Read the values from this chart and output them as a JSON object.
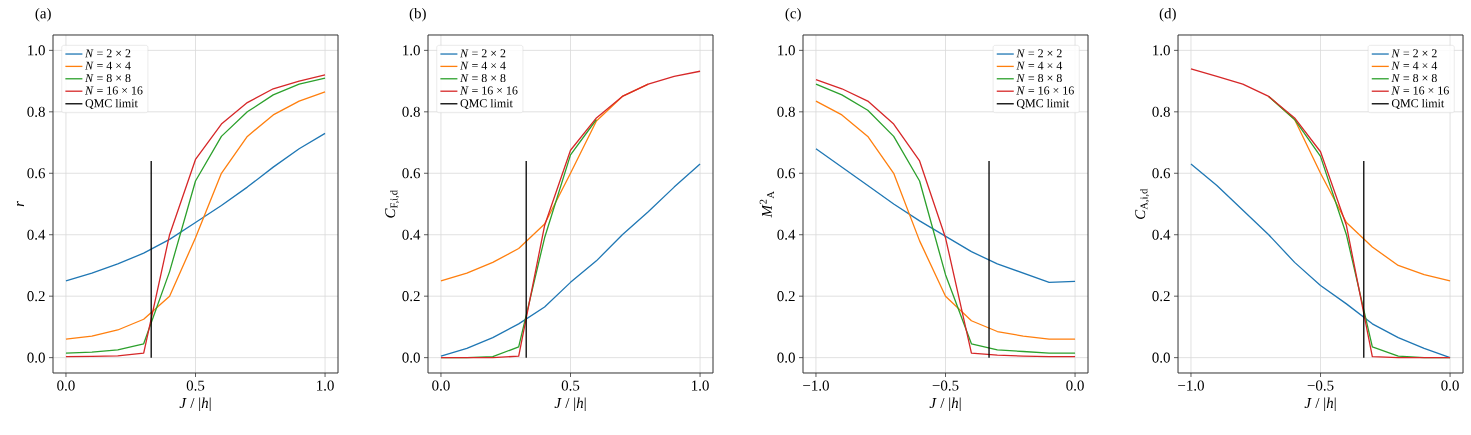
{
  "chart_data": [
    {
      "type": "line",
      "title": "(a)",
      "xlabel": "*J* / |*h*|",
      "ylabel": "*r*",
      "x": [
        0.0,
        0.1,
        0.2,
        0.3,
        0.4,
        0.5,
        0.6,
        0.7,
        0.8,
        0.9,
        1.0
      ],
      "series": [
        {
          "name": "*N* = 2 × 2",
          "color": "#1f77b4",
          "values": [
            0.25,
            0.275,
            0.305,
            0.34,
            0.385,
            0.44,
            0.495,
            0.555,
            0.62,
            0.68,
            0.73
          ]
        },
        {
          "name": "*N* = 4 × 4",
          "color": "#ff7f0e",
          "values": [
            0.06,
            0.07,
            0.09,
            0.125,
            0.2,
            0.39,
            0.6,
            0.72,
            0.79,
            0.835,
            0.865
          ]
        },
        {
          "name": "*N* = 8 × 8",
          "color": "#2ca02c",
          "values": [
            0.015,
            0.018,
            0.025,
            0.045,
            0.28,
            0.575,
            0.72,
            0.8,
            0.855,
            0.89,
            0.91
          ]
        },
        {
          "name": "*N* = 16 × 16",
          "color": "#d62728",
          "values": [
            0.003,
            0.004,
            0.006,
            0.015,
            0.4,
            0.645,
            0.76,
            0.83,
            0.875,
            0.9,
            0.92
          ]
        },
        {
          "name": "QMC limit",
          "color": "#000000",
          "x": [
            0.329,
            0.329
          ],
          "values": [
            0.0,
            0.64
          ]
        }
      ],
      "xlim": [
        -0.05,
        1.05
      ],
      "ylim": [
        -0.05,
        1.05
      ],
      "xticks": [
        {
          "value": 0,
          "label": "0.0"
        },
        {
          "value": 0.5,
          "label": "0.5"
        },
        {
          "value": 1,
          "label": "1.0"
        }
      ],
      "yticks": [
        {
          "value": 0,
          "label": "0.0"
        },
        {
          "value": 0.2,
          "label": "0.2"
        },
        {
          "value": 0.4,
          "label": "0.4"
        },
        {
          "value": 0.6,
          "label": "0.6"
        },
        {
          "value": 0.8,
          "label": "0.8"
        },
        {
          "value": 1,
          "label": "1.0"
        }
      ],
      "grid": true,
      "legend": "top left"
    },
    {
      "type": "line",
      "title": "(b)",
      "xlabel": "*J* / |*h*|",
      "ylabel": "*C*$_{F,i,d}$",
      "x": [
        0.0,
        0.1,
        0.2,
        0.3,
        0.4,
        0.5,
        0.6,
        0.7,
        0.8,
        0.9,
        1.0
      ],
      "series": [
        {
          "name": "*N* = 2 × 2",
          "color": "#1f77b4",
          "values": [
            0.005,
            0.03,
            0.065,
            0.11,
            0.165,
            0.245,
            0.315,
            0.4,
            0.475,
            0.555,
            0.63
          ]
        },
        {
          "name": "*N* = 4 × 4",
          "color": "#ff7f0e",
          "values": [
            0.25,
            0.275,
            0.31,
            0.355,
            0.435,
            0.6,
            0.77,
            0.85,
            0.89,
            null,
            null
          ]
        },
        {
          "name": "*N* = 8 × 8",
          "color": "#2ca02c",
          "values": [
            0.0,
            0.0,
            0.003,
            0.035,
            0.39,
            0.66,
            0.775,
            null,
            null,
            null,
            null
          ]
        },
        {
          "name": "*N* = 16 × 16",
          "color": "#d62728",
          "values": [
            0.0,
            0.0,
            0.0,
            0.005,
            0.43,
            0.675,
            0.78,
            0.85,
            0.89,
            0.915,
            0.932
          ]
        },
        {
          "name": "QMC limit",
          "color": "#000000",
          "x": [
            0.329,
            0.329
          ],
          "values": [
            0.0,
            0.64
          ]
        }
      ],
      "xlim": [
        -0.05,
        1.05
      ],
      "ylim": [
        -0.05,
        1.05
      ],
      "xticks": [
        {
          "value": 0,
          "label": "0.0"
        },
        {
          "value": 0.5,
          "label": "0.5"
        },
        {
          "value": 1,
          "label": "1.0"
        }
      ],
      "yticks": [
        {
          "value": 0,
          "label": "0.0"
        },
        {
          "value": 0.2,
          "label": "0.2"
        },
        {
          "value": 0.4,
          "label": "0.4"
        },
        {
          "value": 0.6,
          "label": "0.6"
        },
        {
          "value": 0.8,
          "label": "0.8"
        },
        {
          "value": 1,
          "label": "1.0"
        }
      ],
      "grid": true,
      "legend": "top left"
    },
    {
      "type": "line",
      "title": "(c)",
      "xlabel": "*J* / |*h*|",
      "ylabel": "*M*$^{2}$$_{A}$",
      "x": [
        -1.0,
        -0.9,
        -0.8,
        -0.7,
        -0.6,
        -0.5,
        -0.4,
        -0.3,
        -0.2,
        -0.1,
        0.0
      ],
      "series": [
        {
          "name": "*N* = 2 × 2",
          "color": "#1f77b4",
          "values": [
            0.68,
            0.62,
            0.56,
            0.5,
            0.445,
            0.395,
            0.345,
            0.305,
            0.275,
            0.245,
            0.248
          ]
        },
        {
          "name": "*N* = 4 × 4",
          "color": "#ff7f0e",
          "values": [
            0.835,
            0.79,
            0.72,
            0.6,
            0.38,
            0.2,
            0.12,
            0.085,
            0.07,
            0.06,
            0.06
          ]
        },
        {
          "name": "*N* = 8 × 8",
          "color": "#2ca02c",
          "values": [
            0.89,
            0.855,
            0.805,
            0.72,
            0.575,
            0.27,
            0.045,
            0.025,
            0.02,
            0.015,
            0.015
          ]
        },
        {
          "name": "*N* = 16 × 16",
          "color": "#d62728",
          "values": [
            0.905,
            0.875,
            0.835,
            0.76,
            0.64,
            0.39,
            0.015,
            0.008,
            0.005,
            0.003,
            0.003
          ]
        },
        {
          "name": "QMC limit",
          "color": "#000000",
          "x": [
            -0.332,
            -0.332
          ],
          "values": [
            0.0,
            0.64
          ]
        }
      ],
      "xlim": [
        -1.05,
        0.05
      ],
      "ylim": [
        -0.05,
        1.05
      ],
      "xticks": [
        {
          "value": -1,
          "label": "−1.0"
        },
        {
          "value": -0.5,
          "label": "−0.5"
        },
        {
          "value": 0,
          "label": "0.0"
        }
      ],
      "yticks": [
        {
          "value": 0,
          "label": "0.0"
        },
        {
          "value": 0.2,
          "label": "0.2"
        },
        {
          "value": 0.4,
          "label": "0.4"
        },
        {
          "value": 0.6,
          "label": "0.6"
        },
        {
          "value": 0.8,
          "label": "0.8"
        },
        {
          "value": 1,
          "label": "1.0"
        }
      ],
      "grid": true,
      "legend": "top right"
    },
    {
      "type": "line",
      "title": "(d)",
      "xlabel": "*J* / |*h*|",
      "ylabel": "*C*$_{A,i,d}$",
      "x": [
        -1.0,
        -0.9,
        -0.8,
        -0.7,
        -0.6,
        -0.5,
        -0.4,
        -0.3,
        -0.2,
        -0.1,
        0.0
      ],
      "series": [
        {
          "name": "*N* = 2 × 2",
          "color": "#1f77b4",
          "values": [
            0.63,
            0.56,
            0.48,
            0.4,
            0.31,
            0.235,
            0.175,
            0.11,
            0.065,
            0.03,
            0.0
          ]
        },
        {
          "name": "*N* = 4 × 4",
          "color": "#ff7f0e",
          "values": [
            null,
            null,
            null,
            0.85,
            0.775,
            0.6,
            0.44,
            0.36,
            0.3,
            0.27,
            0.25
          ]
        },
        {
          "name": "*N* = 8 × 8",
          "color": "#2ca02c",
          "values": [
            null,
            null,
            null,
            0.85,
            0.775,
            0.655,
            0.4,
            0.035,
            0.005,
            0.0,
            0.0
          ]
        },
        {
          "name": "*N* = 16 × 16",
          "color": "#d62728",
          "values": [
            0.94,
            0.915,
            0.89,
            0.85,
            0.78,
            0.67,
            0.43,
            0.003,
            0.0,
            0.0,
            0.0
          ]
        },
        {
          "name": "QMC limit",
          "color": "#000000",
          "x": [
            -0.333,
            -0.333
          ],
          "values": [
            0.0,
            0.64
          ]
        }
      ],
      "xlim": [
        -1.05,
        0.05
      ],
      "ylim": [
        -0.05,
        1.05
      ],
      "xticks": [
        {
          "value": -1,
          "label": "−1.0"
        },
        {
          "value": -0.5,
          "label": "−0.5"
        },
        {
          "value": 0,
          "label": "0.0"
        }
      ],
      "yticks": [
        {
          "value": 0,
          "label": "0.0"
        },
        {
          "value": 0.2,
          "label": "0.2"
        },
        {
          "value": 0.4,
          "label": "0.4"
        },
        {
          "value": 0.6,
          "label": "0.6"
        },
        {
          "value": 0.8,
          "label": "0.8"
        },
        {
          "value": 1,
          "label": "1.0"
        }
      ],
      "grid": true,
      "legend": "top right"
    }
  ]
}
